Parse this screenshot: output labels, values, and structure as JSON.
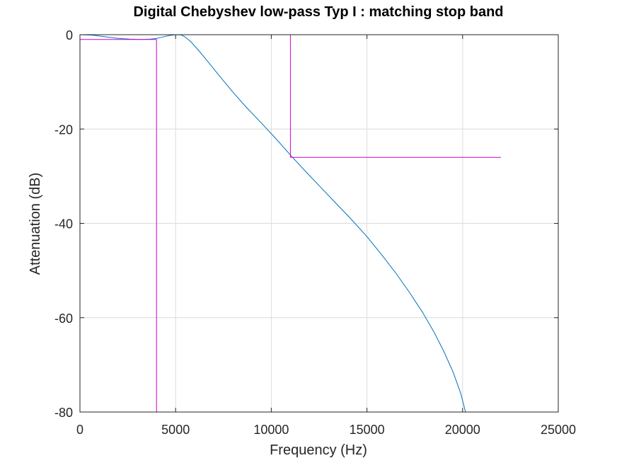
{
  "chart_data": {
    "type": "line",
    "title": "Digital Chebyshev low-pass Typ I : matching stop band",
    "xlabel": "Frequency (Hz)",
    "ylabel": "Attenuation (dB)",
    "xlim": [
      0,
      25000
    ],
    "ylim": [
      -80,
      0
    ],
    "xticks": [
      0,
      5000,
      10000,
      15000,
      20000,
      25000
    ],
    "xtick_labels": [
      "0",
      "5000",
      "10000",
      "15000",
      "20000",
      "25000"
    ],
    "yticks": [
      0,
      -20,
      -40,
      -60,
      -80
    ],
    "ytick_labels": [
      "0",
      "-20",
      "-40",
      "-60",
      "-80"
    ],
    "grid": true,
    "colors": {
      "response": "#0072bd",
      "spec": "#cc00cc",
      "grid": "#dcdcdc",
      "axes": "#262626"
    },
    "series": [
      {
        "kind": "response",
        "x": [
          0,
          700,
          1400,
          2000,
          2600,
          3200,
          3700,
          4000,
          4300,
          4700,
          5000,
          5300,
          5500,
          5800,
          6200,
          6700,
          7300,
          8000,
          8700,
          9500,
          10300,
          11000,
          11700,
          12500,
          13300,
          14100,
          15000,
          15800,
          16500,
          17200,
          17900,
          18500,
          19000,
          19500,
          19900,
          20150
        ],
        "y": [
          0,
          -0.1,
          -0.5,
          -0.8,
          -0.95,
          -1.0,
          -0.95,
          -0.8,
          -0.5,
          -0.15,
          0,
          -0.05,
          -0.5,
          -1.5,
          -3.3,
          -5.8,
          -8.8,
          -12.2,
          -15.4,
          -18.8,
          -22.3,
          -25.5,
          -28.6,
          -32.0,
          -35.4,
          -38.8,
          -42.8,
          -46.8,
          -50.5,
          -54.5,
          -58.8,
          -63.0,
          -67.0,
          -71.5,
          -76.0,
          -80.0
        ]
      },
      {
        "kind": "spec",
        "x": [
          0,
          5500,
          5500,
          11000
        ],
        "y": [
          0,
          0,
          0,
          0
        ]
      },
      {
        "kind": "spec",
        "x": [
          0,
          4000,
          4000
        ],
        "y": [
          -1,
          -1,
          -80
        ]
      },
      {
        "kind": "spec",
        "x": [
          11000,
          11000,
          22000
        ],
        "y": [
          0,
          -26,
          -26
        ]
      }
    ]
  }
}
